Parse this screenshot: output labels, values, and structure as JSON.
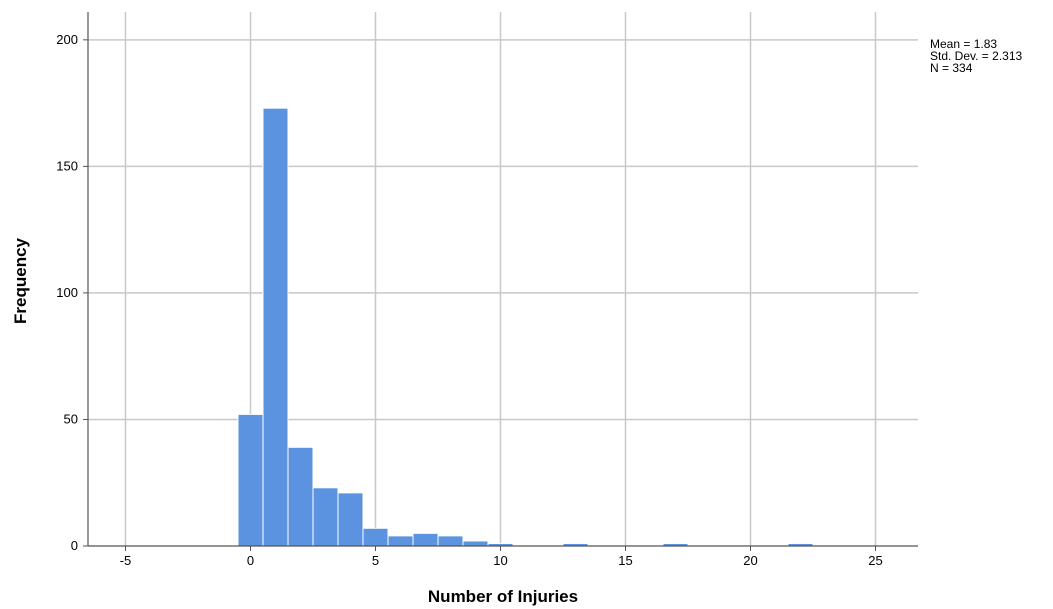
{
  "chart_data": {
    "type": "bar",
    "title": "",
    "xlabel": "Number of Injuries",
    "ylabel": "Frequency",
    "xlim": [
      -6.5,
      26.7
    ],
    "ylim": [
      0,
      211
    ],
    "x_ticks": [
      -5,
      0,
      5,
      10,
      15,
      20,
      25
    ],
    "y_ticks": [
      0,
      50,
      100,
      150,
      200
    ],
    "grid": true,
    "bin_width": 1,
    "bins": [
      {
        "x0": -0.5,
        "x1": 0.5,
        "value": 52
      },
      {
        "x0": 0.5,
        "x1": 1.5,
        "value": 173
      },
      {
        "x0": 1.5,
        "x1": 2.5,
        "value": 39
      },
      {
        "x0": 2.5,
        "x1": 3.5,
        "value": 23
      },
      {
        "x0": 3.5,
        "x1": 4.5,
        "value": 21
      },
      {
        "x0": 4.5,
        "x1": 5.5,
        "value": 7
      },
      {
        "x0": 5.5,
        "x1": 6.5,
        "value": 4
      },
      {
        "x0": 6.5,
        "x1": 7.5,
        "value": 5
      },
      {
        "x0": 7.5,
        "x1": 8.5,
        "value": 4
      },
      {
        "x0": 8.5,
        "x1": 9.5,
        "value": 2
      },
      {
        "x0": 9.5,
        "x1": 10.5,
        "value": 1
      },
      {
        "x0": 12.5,
        "x1": 13.5,
        "value": 1
      },
      {
        "x0": 16.5,
        "x1": 17.5,
        "value": 1
      },
      {
        "x0": 21.5,
        "x1": 22.5,
        "value": 1
      }
    ],
    "legend_position": "top-right",
    "stats": {
      "mean": "Mean = 1.83",
      "std_dev": "Std. Dev. = 2.313",
      "n": "N = 334"
    }
  },
  "colors": {
    "bar_fill": "#5b93e0",
    "bar_stroke": "#ffffff",
    "grid": "#c8c8c8",
    "axis": "#555555"
  }
}
